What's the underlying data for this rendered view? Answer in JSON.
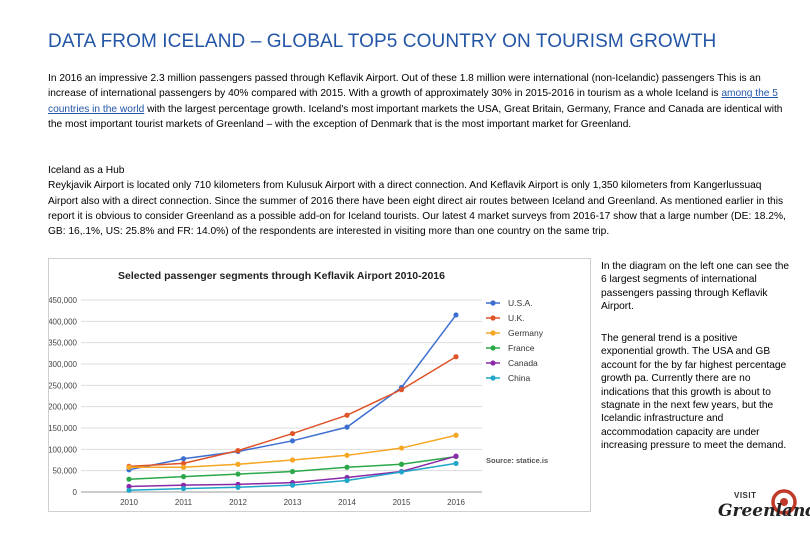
{
  "title": "DATA FROM ICELAND – GLOBAL TOP5 COUNTRY ON TOURISM GROWTH",
  "para1": {
    "before_link": "In 2016 an impressive 2.3 million passengers passed through Keflavik Airport. Out of these 1.8 million were international (non-Icelandic) passengers This is an increase of international passengers by 40% compared with 2015. With a growth of approximately 30% in 2015-2016 in tourism as a whole Iceland is ",
    "link_text": "among the 5 countries in the world",
    "after_link": " with the largest percentage growth. Iceland's most important markets the USA, Great Britain, Germany, France and Canada are identical with the most important tourist markets of Greenland – with the exception of Denmark that is the most important market for Greenland."
  },
  "para2": {
    "heading": "Iceland as a Hub",
    "body": "Reykjavik Airport is located only 710 kilometers from Kulusuk Airport with a direct connection. And Keflavik Airport is only 1,350 kilometers from Kangerlussuaq Airport also with a direct connection. Since the summer of 2016 there have been eight direct air routes between Iceland and Greenland. As mentioned earlier in this report it is obvious to consider Greenland as a possible add-on for Iceland tourists. Our latest 4 market surveys from 2016-17 show that a large number (DE: 18.2%, GB: 16,.1%, US: 25.8% and FR: 14.0%) of the respondents are interested in visiting more than one country on the same trip."
  },
  "side": {
    "p1": "In the diagram on the left one can see the 6 largest segments of international passengers passing through Keflavik Airport.",
    "p2": "The general trend is a positive exponential growth. The USA and GB account for the by far highest percentage growth pa. Currently there are no indications that this growth is about to stagnate in the next few years, but the Icelandic infrastructure and accommodation capacity are under increasing pressure to meet the demand."
  },
  "logo": {
    "visit": "VISIT",
    "word": "Greenland"
  },
  "chart_data": {
    "type": "line",
    "title": "Selected passenger segments through Keflavik Airport 2010-2016",
    "source": "Source: statice.is",
    "x": [
      "2010",
      "2011",
      "2012",
      "2013",
      "2014",
      "2015",
      "2016"
    ],
    "ylim": [
      0,
      450000
    ],
    "yticks": [
      "0",
      "50,000",
      "100,000",
      "150,000",
      "200,000",
      "250,000",
      "300,000",
      "350,000",
      "400,000",
      "450,000"
    ],
    "grid": true,
    "legend_position": "top-right",
    "series": [
      {
        "name": "U.S.A.",
        "color": "#3d6fd0",
        "values": [
          52000,
          78000,
          95000,
          120000,
          152000,
          245000,
          415000
        ]
      },
      {
        "name": "U.K.",
        "color": "#e0542a",
        "values": [
          60000,
          67000,
          97000,
          137000,
          180000,
          240000,
          317000
        ]
      },
      {
        "name": "Germany",
        "color": "#f5a623",
        "values": [
          58000,
          58000,
          65000,
          75000,
          86000,
          103000,
          133000
        ]
      },
      {
        "name": "France",
        "color": "#2aa84a",
        "values": [
          30000,
          36000,
          42000,
          48000,
          58000,
          65000,
          83000
        ]
      },
      {
        "name": "Canada",
        "color": "#8a2aa8",
        "values": [
          13000,
          16000,
          18000,
          22000,
          34000,
          48000,
          84000
        ]
      },
      {
        "name": "China",
        "color": "#1fa6c9",
        "values": [
          4000,
          8000,
          11000,
          16000,
          27000,
          47000,
          67000
        ]
      }
    ]
  }
}
